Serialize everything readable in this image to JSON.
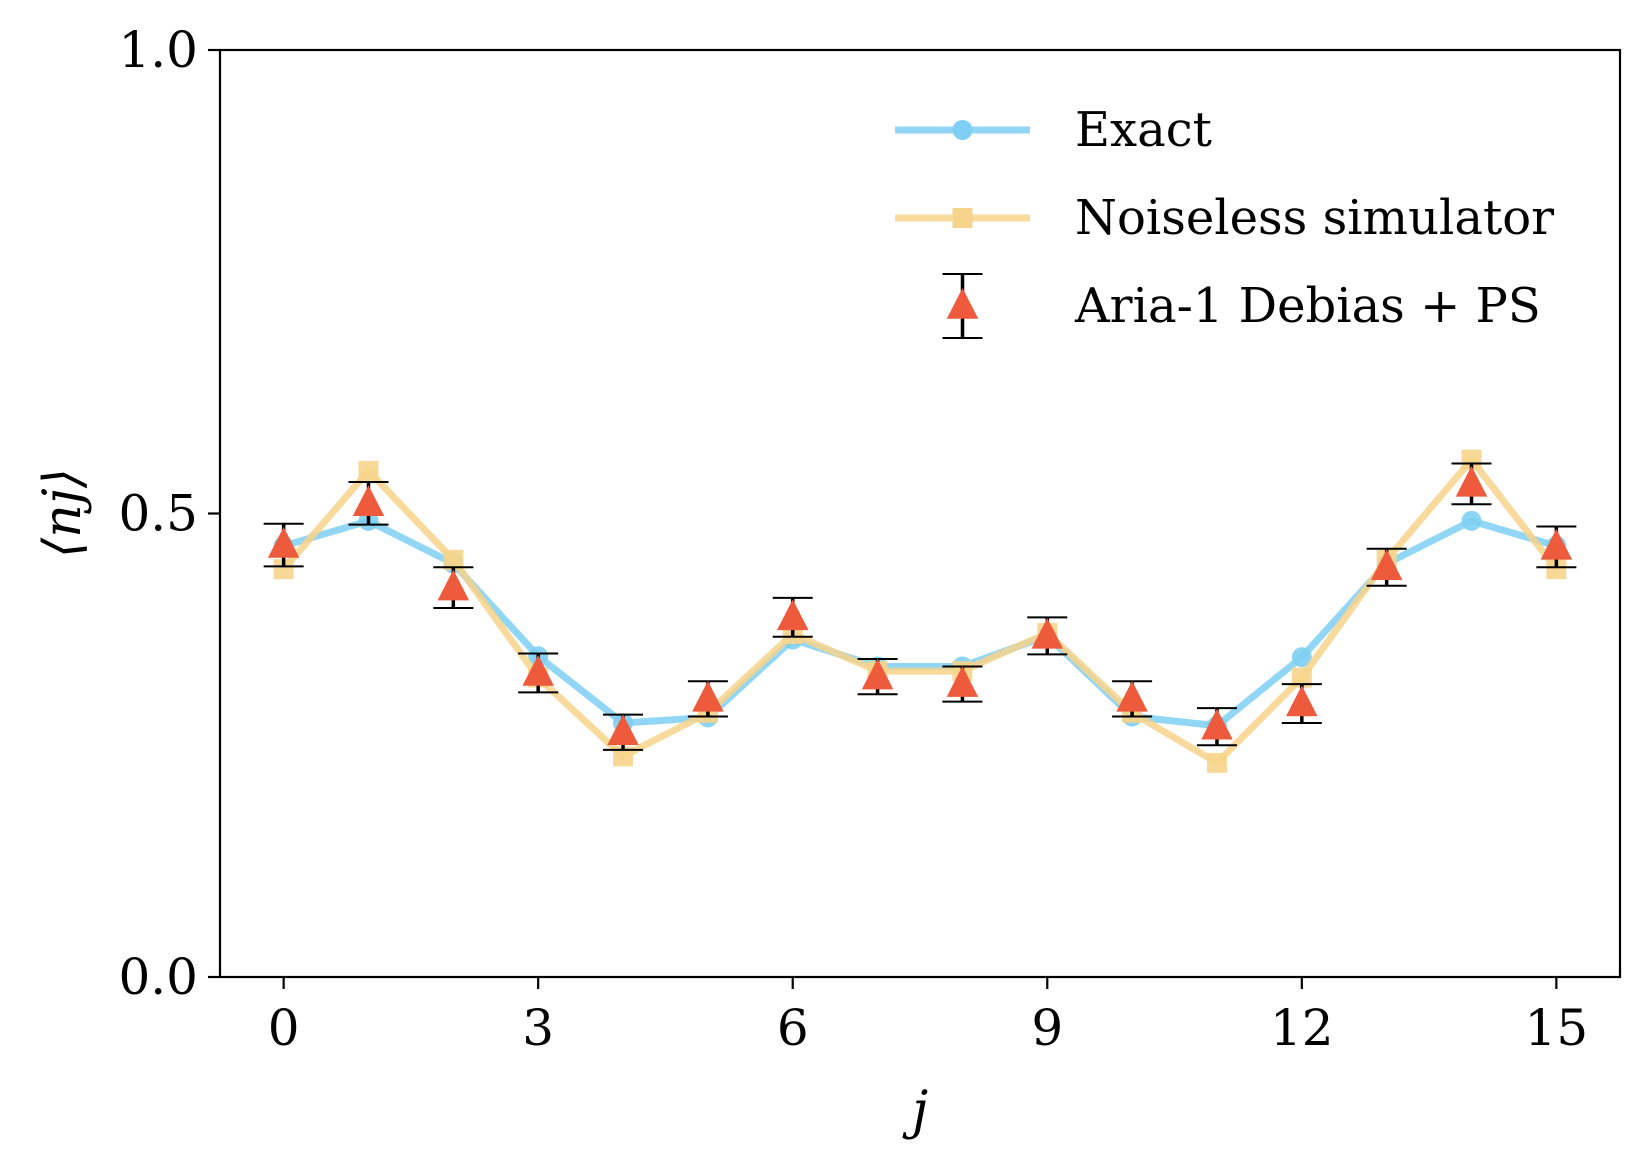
{
  "chart_data": {
    "type": "line",
    "xlabel": "j",
    "ylabel": "⟨n_j⟩",
    "ylabel_display": "⟨nj⟩",
    "xlim": [
      -0.75,
      15.75
    ],
    "ylim": [
      0.0,
      1.0
    ],
    "xticks": [
      0,
      3,
      6,
      9,
      12,
      15
    ],
    "xtick_labels": [
      "0",
      "3",
      "6",
      "9",
      "12",
      "15"
    ],
    "yticks": [
      0.0,
      0.5,
      1.0
    ],
    "ytick_labels": [
      "0.0",
      "0.5",
      "1.0"
    ],
    "grid": false,
    "legend_position": "top-right",
    "x": [
      0,
      1,
      2,
      3,
      4,
      5,
      6,
      7,
      8,
      9,
      10,
      11,
      12,
      13,
      14,
      15
    ],
    "series": [
      {
        "name": "Exact",
        "marker": "circle",
        "color": "#7ecff3",
        "values": [
          0.465,
          0.492,
          0.446,
          0.346,
          0.274,
          0.28,
          0.364,
          0.335,
          0.335,
          0.368,
          0.281,
          0.271,
          0.345,
          0.446,
          0.492,
          0.465
        ]
      },
      {
        "name": "Noiseless simulator",
        "marker": "square",
        "color": "#f6d48b",
        "values": [
          0.44,
          0.546,
          0.45,
          0.323,
          0.238,
          0.285,
          0.37,
          0.33,
          0.33,
          0.371,
          0.285,
          0.231,
          0.323,
          0.45,
          0.558,
          0.44
        ]
      },
      {
        "name": "Aria-1 Debias + PS",
        "marker": "triangle",
        "color": "#ee5a3c",
        "errorbar_color": "#000000",
        "values": [
          0.466,
          0.511,
          0.42,
          0.328,
          0.264,
          0.3,
          0.388,
          0.324,
          0.316,
          0.368,
          0.3,
          0.27,
          0.295,
          0.442,
          0.532,
          0.464
        ],
        "errors": [
          0.023,
          0.023,
          0.022,
          0.021,
          0.019,
          0.019,
          0.021,
          0.019,
          0.019,
          0.02,
          0.019,
          0.02,
          0.021,
          0.02,
          0.022,
          0.022
        ]
      }
    ]
  }
}
